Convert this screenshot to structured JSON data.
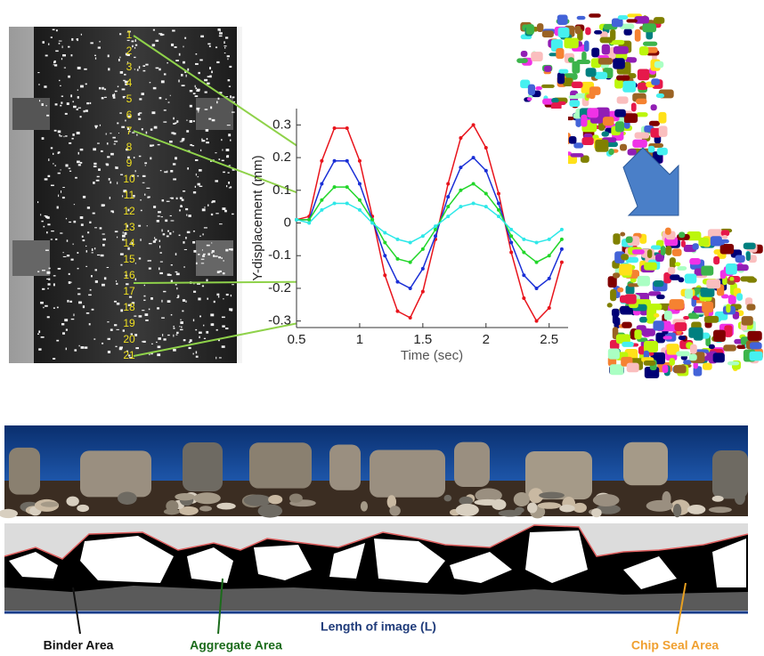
{
  "chart_data": {
    "type": "line",
    "x_label": "Time (sec)",
    "y_label": "Y-displacement (mm)",
    "x": [
      0.5,
      0.6,
      0.7,
      0.8,
      0.9,
      1.0,
      1.1,
      1.2,
      1.3,
      1.4,
      1.5,
      1.6,
      1.7,
      1.8,
      1.9,
      2.0,
      2.1,
      2.2,
      2.3,
      2.4,
      2.5,
      2.6
    ],
    "series": [
      {
        "color": "#e8141c",
        "values": [
          0.01,
          0.02,
          0.19,
          0.29,
          0.29,
          0.19,
          0.02,
          -0.16,
          -0.27,
          -0.29,
          -0.21,
          -0.05,
          0.12,
          0.26,
          0.3,
          0.23,
          0.09,
          -0.09,
          -0.23,
          -0.3,
          -0.26,
          -0.12
        ]
      },
      {
        "color": "#1a2fd6",
        "values": [
          0.01,
          0.01,
          0.12,
          0.19,
          0.19,
          0.12,
          0.01,
          -0.1,
          -0.18,
          -0.2,
          -0.14,
          -0.04,
          0.08,
          0.17,
          0.2,
          0.16,
          0.06,
          -0.06,
          -0.16,
          -0.2,
          -0.17,
          -0.08
        ]
      },
      {
        "color": "#22d62a",
        "values": [
          0.01,
          0.01,
          0.07,
          0.11,
          0.11,
          0.07,
          0.01,
          -0.06,
          -0.11,
          -0.12,
          -0.08,
          -0.02,
          0.05,
          0.1,
          0.12,
          0.09,
          0.04,
          -0.04,
          -0.09,
          -0.12,
          -0.1,
          -0.05
        ]
      },
      {
        "color": "#2ee8e8",
        "values": [
          0.01,
          0.0,
          0.04,
          0.06,
          0.06,
          0.04,
          0.0,
          -0.03,
          -0.05,
          -0.06,
          -0.04,
          -0.01,
          0.02,
          0.05,
          0.06,
          0.05,
          0.02,
          -0.02,
          -0.05,
          -0.06,
          -0.05,
          -0.02
        ]
      }
    ],
    "xlim": [
      0.5,
      2.65
    ],
    "ylim": [
      -0.32,
      0.35
    ],
    "xticks": [
      0.5,
      1,
      1.5,
      2,
      2.5
    ],
    "yticks": [
      0.3,
      0.2,
      0.1,
      0,
      -0.1,
      -0.2,
      -0.3
    ]
  },
  "specimen_labels": [
    "1",
    "2",
    "3",
    "4",
    "5",
    "6",
    "7",
    "8",
    "9",
    "10",
    "11",
    "12",
    "13",
    "14",
    "15",
    "16",
    "17",
    "18",
    "19",
    "20",
    "21"
  ],
  "annotations": {
    "length": "Length of image (L)",
    "binder": "Binder Area",
    "aggregate": "Aggregate Area",
    "chip_seal": "Chip Seal Area"
  }
}
